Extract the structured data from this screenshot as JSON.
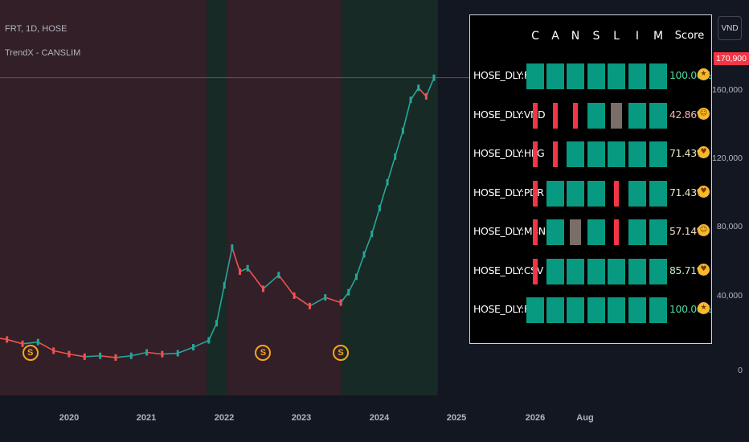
{
  "legend": {
    "symbol": "FRT, 1D, HOSE",
    "indicator": "TrendX - CANSLIM"
  },
  "y_axis": {
    "currency": "VND",
    "last_price": "170,900",
    "ticks": [
      "160,000",
      "120,000",
      "80,000",
      "40,000",
      "0"
    ]
  },
  "x_axis": {
    "ticks": [
      "2020",
      "2021",
      "2022",
      "2023",
      "2024",
      "2025",
      "2026",
      "Aug"
    ]
  },
  "badges": [
    "S",
    "S",
    "S"
  ],
  "table": {
    "headers": [
      "C",
      "A",
      "N",
      "S",
      "L",
      "I",
      "M"
    ],
    "score_header": "Score",
    "rows": [
      {
        "label": "HOSE_DLY:FRT",
        "cells": [
          "pass",
          "pass",
          "pass",
          "pass",
          "pass",
          "pass",
          "pass"
        ],
        "score": "100.00%",
        "score_color": "#4cdca3",
        "emoji": "star-struck-emoji"
      },
      {
        "label": "HOSE_DLY:VND",
        "cells": [
          "fail",
          "fail",
          "fail",
          "pass",
          "neutral",
          "pass",
          "pass"
        ],
        "score": "42.86%",
        "score_color": "#f7b3b3",
        "emoji": "smiling-sunglasses-emoji"
      },
      {
        "label": "HOSE_DLY:HPG",
        "cells": [
          "fail",
          "fail",
          "pass",
          "pass",
          "pass",
          "pass",
          "pass"
        ],
        "score": "71.43%",
        "score_color": "#e8e6c6",
        "emoji": "heart-eyes-emoji"
      },
      {
        "label": "HOSE_DLY:PDR",
        "cells": [
          "fail",
          "pass",
          "pass",
          "pass",
          "fail",
          "pass",
          "pass"
        ],
        "score": "71.43%",
        "score_color": "#e8e6c6",
        "emoji": "heart-eyes-emoji"
      },
      {
        "label": "HOSE_DLY:MSN",
        "cells": [
          "fail",
          "pass",
          "neutral",
          "pass",
          "fail",
          "pass",
          "pass"
        ],
        "score": "57.14%",
        "score_color": "#ecdcc8",
        "emoji": "smiling-sunglasses-emoji"
      },
      {
        "label": "HOSE_DLY:CSV",
        "cells": [
          "fail",
          "pass",
          "pass",
          "pass",
          "pass",
          "pass",
          "pass"
        ],
        "score": "85.71%",
        "score_color": "#bfe8c4",
        "emoji": "heart-eyes-emoji"
      },
      {
        "label": "HOSE_DLY:FRT",
        "cells": [
          "pass",
          "pass",
          "pass",
          "pass",
          "pass",
          "pass",
          "pass"
        ],
        "score": "100.00%",
        "score_color": "#4cdca3",
        "emoji": "star-struck-emoji"
      }
    ]
  },
  "chart_data": {
    "type": "line",
    "title": "FRT, 1D, HOSE",
    "x": [
      2019.0,
      2019.2,
      2019.4,
      2019.6,
      2019.8,
      2020.0,
      2020.2,
      2020.4,
      2020.6,
      2020.8,
      2021.0,
      2021.2,
      2021.4,
      2021.6,
      2021.8,
      2021.9,
      2022.0,
      2022.1,
      2022.2,
      2022.3,
      2022.5,
      2022.7,
      2022.9,
      2023.1,
      2023.3,
      2023.5,
      2023.6,
      2023.7,
      2023.8,
      2023.9,
      2024.0,
      2024.1,
      2024.2,
      2024.3,
      2024.4,
      2024.5,
      2024.6,
      2024.7
    ],
    "y": [
      20000,
      18500,
      16000,
      17000,
      12000,
      10000,
      8500,
      9000,
      8000,
      9000,
      11000,
      10000,
      10500,
      14000,
      18000,
      28000,
      50000,
      72000,
      58000,
      60000,
      48000,
      56000,
      44000,
      38000,
      43000,
      40000,
      46000,
      55000,
      68000,
      80000,
      95000,
      110000,
      125000,
      140000,
      158000,
      165000,
      160000,
      170900
    ],
    "ylim": [
      0,
      190000
    ],
    "xlim": [
      2019.0,
      2026.5
    ],
    "background_zones": [
      {
        "from": 2019.0,
        "to": 2021.77,
        "color": "#331f27"
      },
      {
        "from": 2021.77,
        "to": 2022.03,
        "color": "#182a25"
      },
      {
        "from": 2022.03,
        "to": 2023.5,
        "color": "#331f27"
      },
      {
        "from": 2023.5,
        "to": 2024.75,
        "color": "#182a25"
      }
    ],
    "badge_x": [
      2019.5,
      2022.5,
      2023.5
    ]
  }
}
